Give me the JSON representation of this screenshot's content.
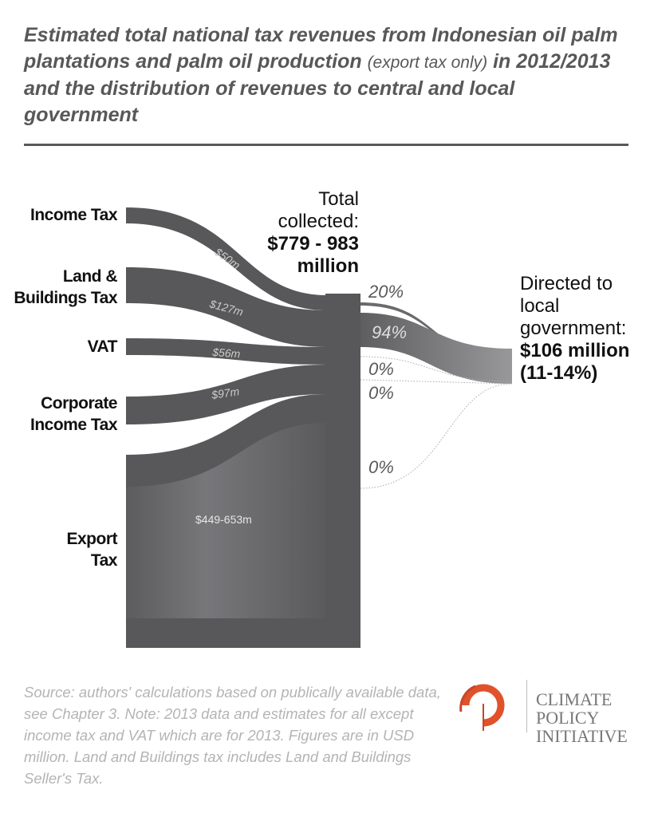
{
  "title": {
    "main_1": "Estimated total national tax revenues from Indonesian oil palm plantations and palm oil production",
    "sub": "(export tax only)",
    "main_2": "in 2012/2013 and the distribution of revenues to central and local government"
  },
  "sources": [
    {
      "label_1": "Income Tax",
      "label_2": "",
      "value": "$50m"
    },
    {
      "label_1": "Land &",
      "label_2": "Buildings Tax",
      "value": "$127m"
    },
    {
      "label_1": "VAT",
      "label_2": "",
      "value": "$56m"
    },
    {
      "label_1": "Corporate",
      "label_2": "Income Tax",
      "value": "$97m"
    },
    {
      "label_1": "Export",
      "label_2": "Tax",
      "value": "$449-653m"
    }
  ],
  "total": {
    "line1": "Total",
    "line2": "collected:",
    "amount": "$779 - 983",
    "unit": "million"
  },
  "shares": [
    "20%",
    "94%",
    "0%",
    "0%",
    "0%"
  ],
  "local": {
    "line1": "Directed to",
    "line2": "local",
    "line3": "government:",
    "amount": "$106 million",
    "pct": "(11-14%)"
  },
  "source_note": "Source: authors' calculations based on publically available data, see Chapter 3. Note: 2013 data and estimates for all except income tax and VAT which are for 2013. Figures are in USD million. Land and Buildings tax includes Land and Buildings Seller's Tax.",
  "logo": {
    "line1": "CLIMATE",
    "line2": "POLICY",
    "line3": "INITIATIVE"
  },
  "colors": {
    "band": "#58585a",
    "accent": "#e0522a",
    "light": "#939396"
  }
}
